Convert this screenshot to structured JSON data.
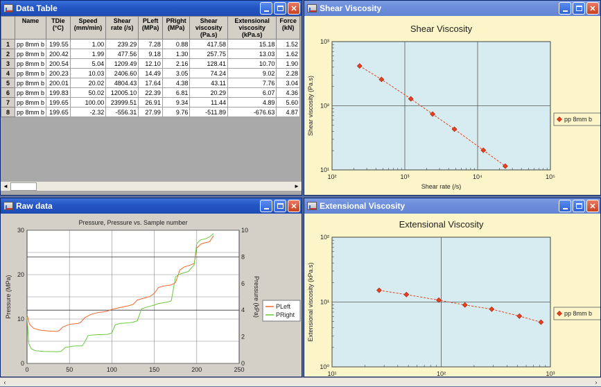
{
  "windows": {
    "data_table": {
      "title": "Data Table"
    },
    "shear": {
      "title": "Shear Viscosity"
    },
    "raw": {
      "title": "Raw data"
    },
    "ext": {
      "title": "Extensional Viscosity"
    }
  },
  "table": {
    "headers": [
      "",
      "Name",
      "TDie (°C)",
      "Speed (mm/min)",
      "Shear rate (/s)",
      "PLeft (MPa)",
      "PRight (MPa)",
      "Shear viscosity (Pa.s)",
      "Extensional viscosity (kPa.s)",
      "Force (kN)"
    ],
    "rows": [
      [
        "1",
        "pp 8mm b",
        "199.55",
        "1.00",
        "239.29",
        "7.28",
        "0.88",
        "417.58",
        "15.18",
        "1.52"
      ],
      [
        "2",
        "pp 8mm b",
        "200.42",
        "1.99",
        "477.56",
        "9.18",
        "1.30",
        "257.75",
        "13.03",
        "1.62"
      ],
      [
        "3",
        "pp 8mm b",
        "200.54",
        "5.04",
        "1209.49",
        "12.10",
        "2.16",
        "128.41",
        "10.70",
        "1.90"
      ],
      [
        "4",
        "pp 8mm b",
        "200.23",
        "10.03",
        "2406.60",
        "14.49",
        "3.05",
        "74.24",
        "9.02",
        "2.28"
      ],
      [
        "5",
        "pp 8mm b",
        "200.01",
        "20.02",
        "4804.43",
        "17.64",
        "4.38",
        "43.11",
        "7.76",
        "3.04"
      ],
      [
        "6",
        "pp 8mm b",
        "199.83",
        "50.02",
        "12005.10",
        "22.39",
        "6.81",
        "20.29",
        "6.07",
        "4.36"
      ],
      [
        "7",
        "pp 8mm b",
        "199.65",
        "100.00",
        "23999.51",
        "26.91",
        "9.34",
        "11.44",
        "4.89",
        "5.60"
      ],
      [
        "8",
        "pp 8mm b",
        "199.65",
        "-2.32",
        "-556.31",
        "27.99",
        "9.76",
        "-511.89",
        "-676.63",
        "4.87"
      ]
    ]
  },
  "chart_data": [
    {
      "type": "scatter",
      "title": "Shear Viscosity",
      "xlabel": "Shear rate (/s)",
      "ylabel": "Shear viscosity (Pa.s)",
      "xscale": "log",
      "yscale": "log",
      "xlim": [
        100,
        100000
      ],
      "ylim": [
        10,
        1000
      ],
      "x_ticks": [
        "10²",
        "10³",
        "10⁴",
        "10⁵"
      ],
      "y_ticks": [
        "10¹",
        "10²",
        "10³"
      ],
      "grid": true,
      "legend_position": "right",
      "series": [
        {
          "name": "pp 8mm b",
          "color": "#e8401c",
          "x": [
            239.29,
            477.56,
            1209.49,
            2406.6,
            4804.43,
            12005.1,
            23999.51
          ],
          "y": [
            417.58,
            257.75,
            128.41,
            74.24,
            43.11,
            20.29,
            11.44
          ]
        }
      ]
    },
    {
      "type": "line",
      "title": "Pressure, Pressure vs. Sample number",
      "ylabel": "Pressure (MPa)",
      "y2label": "Pressure (kPa)",
      "xlim": [
        0,
        250
      ],
      "ylim": [
        0,
        30
      ],
      "y2lim": [
        0,
        10
      ],
      "x_ticks": [
        "0",
        "50",
        "100",
        "150",
        "200",
        "250"
      ],
      "y_ticks": [
        "0",
        "10",
        "20",
        "30"
      ],
      "y2_ticks": [
        "0",
        "2",
        "4",
        "6",
        "8",
        "10"
      ],
      "grid": true,
      "legend_position": "right",
      "series": [
        {
          "name": "PLeft",
          "color": "#f06a2c",
          "x": [
            0,
            3,
            8,
            15,
            25,
            35,
            38,
            42,
            50,
            55,
            60,
            63,
            68,
            75,
            80,
            85,
            90,
            95,
            100,
            110,
            120,
            125,
            130,
            140,
            145,
            150,
            155,
            160,
            170,
            175,
            180,
            185,
            190,
            197,
            200,
            205,
            210,
            215,
            220
          ],
          "y": [
            11,
            8.8,
            7.9,
            7.5,
            7.3,
            7.2,
            7.4,
            8.2,
            8.8,
            8.9,
            9.0,
            9.2,
            10.3,
            11.0,
            11.3,
            11.5,
            11.6,
            11.8,
            12.2,
            12.6,
            13.0,
            13.3,
            14.3,
            14.8,
            15.1,
            15.8,
            17.1,
            17.4,
            17.7,
            18.2,
            21.0,
            21.7,
            22.0,
            22.5,
            26.0,
            26.9,
            27.2,
            27.4,
            28.8
          ]
        },
        {
          "name": "PRight",
          "color": "#6cc83c",
          "x": [
            0,
            2,
            5,
            10,
            20,
            35,
            40,
            45,
            55,
            65,
            68,
            72,
            80,
            95,
            100,
            104,
            110,
            120,
            125,
            130,
            135,
            145,
            150,
            155,
            165,
            170,
            175,
            180,
            185,
            190,
            197,
            200,
            205,
            210,
            215,
            220
          ],
          "y": [
            3.5,
            1.5,
            1.1,
            0.95,
            0.9,
            0.88,
            0.9,
            1.2,
            1.3,
            1.32,
            1.6,
            2.1,
            2.15,
            2.18,
            2.3,
            2.9,
            3.0,
            3.05,
            3.1,
            3.2,
            4.1,
            4.3,
            4.38,
            4.5,
            4.6,
            4.7,
            6.5,
            6.7,
            6.81,
            6.9,
            7.4,
            9.0,
            9.3,
            9.34,
            9.5,
            9.76
          ]
        }
      ]
    },
    {
      "type": "scatter",
      "title": "Extensional Viscosity",
      "ylabel": "Extensional viscosity (kPa.s)",
      "xscale": "log",
      "yscale": "log",
      "xlim": [
        10,
        1000
      ],
      "ylim": [
        1,
        100
      ],
      "x_ticks": [
        "10¹",
        "10²",
        "10³"
      ],
      "y_ticks": [
        "10⁰",
        "10¹",
        "10²"
      ],
      "grid": true,
      "legend_position": "right",
      "series": [
        {
          "name": "pp 8mm b",
          "color": "#e8401c",
          "x": [
            27,
            48,
            95,
            165,
            290,
            520,
            820
          ],
          "y": [
            15.18,
            13.03,
            10.7,
            9.02,
            7.76,
            6.07,
            4.89
          ]
        }
      ]
    }
  ]
}
